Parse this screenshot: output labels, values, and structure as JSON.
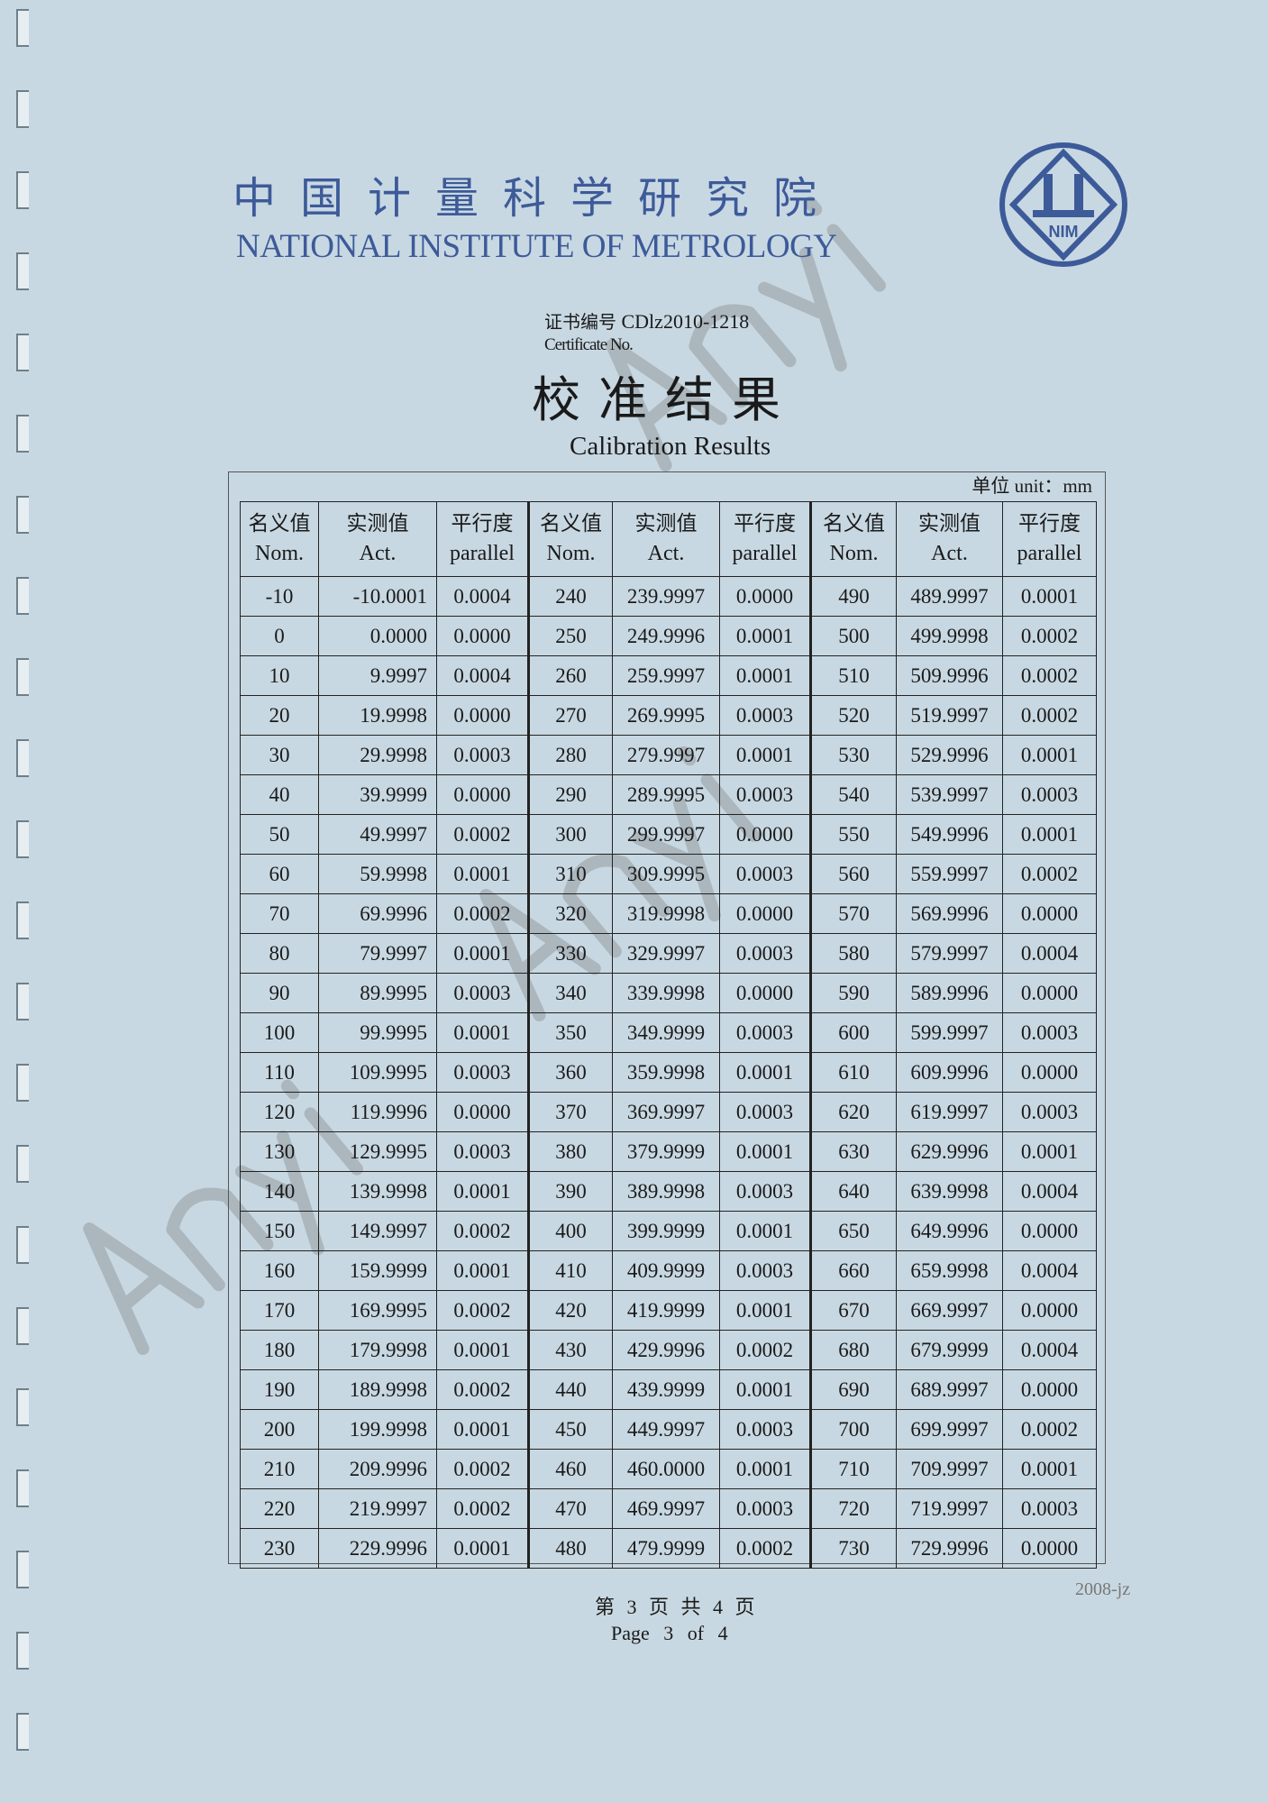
{
  "header": {
    "institute_cn": "中国计量科学研究院",
    "institute_en": "NATIONAL INSTITUTE OF METROLOGY",
    "logo_text": "NIM"
  },
  "certificate": {
    "label_cn": "证书编号",
    "number": "CDlz2010-1218",
    "label_en": "Certificate No."
  },
  "title": {
    "cn": "校准结果",
    "en": "Calibration Results"
  },
  "unit": "单位  unit：mm",
  "table": {
    "headers": [
      {
        "cn": "名义值",
        "en": "Nom."
      },
      {
        "cn": "实测值",
        "en": "Act."
      },
      {
        "cn": "平行度",
        "en": "parallel"
      },
      {
        "cn": "名义值",
        "en": "Nom."
      },
      {
        "cn": "实测值",
        "en": "Act."
      },
      {
        "cn": "平行度",
        "en": "parallel"
      },
      {
        "cn": "名义值",
        "en": "Nom."
      },
      {
        "cn": "实测值",
        "en": "Act."
      },
      {
        "cn": "平行度",
        "en": "parallel"
      }
    ],
    "rows": [
      [
        "-10",
        "-10.0001",
        "0.0004",
        "240",
        "239.9997",
        "0.0000",
        "490",
        "489.9997",
        "0.0001"
      ],
      [
        "0",
        "0.0000",
        "0.0000",
        "250",
        "249.9996",
        "0.0001",
        "500",
        "499.9998",
        "0.0002"
      ],
      [
        "10",
        "9.9997",
        "0.0004",
        "260",
        "259.9997",
        "0.0001",
        "510",
        "509.9996",
        "0.0002"
      ],
      [
        "20",
        "19.9998",
        "0.0000",
        "270",
        "269.9995",
        "0.0003",
        "520",
        "519.9997",
        "0.0002"
      ],
      [
        "30",
        "29.9998",
        "0.0003",
        "280",
        "279.9997",
        "0.0001",
        "530",
        "529.9996",
        "0.0001"
      ],
      [
        "40",
        "39.9999",
        "0.0000",
        "290",
        "289.9995",
        "0.0003",
        "540",
        "539.9997",
        "0.0003"
      ],
      [
        "50",
        "49.9997",
        "0.0002",
        "300",
        "299.9997",
        "0.0000",
        "550",
        "549.9996",
        "0.0001"
      ],
      [
        "60",
        "59.9998",
        "0.0001",
        "310",
        "309.9995",
        "0.0003",
        "560",
        "559.9997",
        "0.0002"
      ],
      [
        "70",
        "69.9996",
        "0.0002",
        "320",
        "319.9998",
        "0.0000",
        "570",
        "569.9996",
        "0.0000"
      ],
      [
        "80",
        "79.9997",
        "0.0001",
        "330",
        "329.9997",
        "0.0003",
        "580",
        "579.9997",
        "0.0004"
      ],
      [
        "90",
        "89.9995",
        "0.0003",
        "340",
        "339.9998",
        "0.0000",
        "590",
        "589.9996",
        "0.0000"
      ],
      [
        "100",
        "99.9995",
        "0.0001",
        "350",
        "349.9999",
        "0.0003",
        "600",
        "599.9997",
        "0.0003"
      ],
      [
        "110",
        "109.9995",
        "0.0003",
        "360",
        "359.9998",
        "0.0001",
        "610",
        "609.9996",
        "0.0000"
      ],
      [
        "120",
        "119.9996",
        "0.0000",
        "370",
        "369.9997",
        "0.0003",
        "620",
        "619.9997",
        "0.0003"
      ],
      [
        "130",
        "129.9995",
        "0.0003",
        "380",
        "379.9999",
        "0.0001",
        "630",
        "629.9996",
        "0.0001"
      ],
      [
        "140",
        "139.9998",
        "0.0001",
        "390",
        "389.9998",
        "0.0003",
        "640",
        "639.9998",
        "0.0004"
      ],
      [
        "150",
        "149.9997",
        "0.0002",
        "400",
        "399.9999",
        "0.0001",
        "650",
        "649.9996",
        "0.0000"
      ],
      [
        "160",
        "159.9999",
        "0.0001",
        "410",
        "409.9999",
        "0.0003",
        "660",
        "659.9998",
        "0.0004"
      ],
      [
        "170",
        "169.9995",
        "0.0002",
        "420",
        "419.9999",
        "0.0001",
        "670",
        "669.9997",
        "0.0000"
      ],
      [
        "180",
        "179.9998",
        "0.0001",
        "430",
        "429.9996",
        "0.0002",
        "680",
        "679.9999",
        "0.0004"
      ],
      [
        "190",
        "189.9998",
        "0.0002",
        "440",
        "439.9999",
        "0.0001",
        "690",
        "689.9997",
        "0.0000"
      ],
      [
        "200",
        "199.9998",
        "0.0001",
        "450",
        "449.9997",
        "0.0003",
        "700",
        "699.9997",
        "0.0002"
      ],
      [
        "210",
        "209.9996",
        "0.0002",
        "460",
        "460.0000",
        "0.0001",
        "710",
        "709.9997",
        "0.0001"
      ],
      [
        "220",
        "219.9997",
        "0.0002",
        "470",
        "469.9997",
        "0.0003",
        "720",
        "719.9997",
        "0.0003"
      ],
      [
        "230",
        "229.9996",
        "0.0001",
        "480",
        "479.9999",
        "0.0002",
        "730",
        "729.9996",
        "0.0000"
      ]
    ]
  },
  "footer": {
    "page_cn": "第 3 页   共 4 页",
    "page_en": "Page  3  of  4",
    "form_code": "2008-jz"
  },
  "watermark": "Anyi",
  "colors": {
    "paper": "#c8d8e2",
    "header_blue": "#3d5a99"
  }
}
